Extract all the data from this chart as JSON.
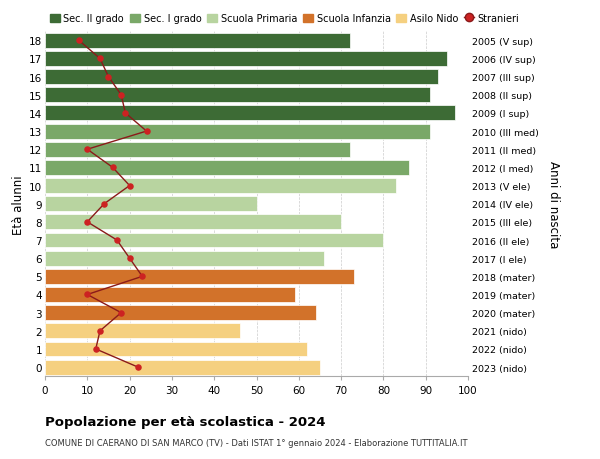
{
  "ages": [
    18,
    17,
    16,
    15,
    14,
    13,
    12,
    11,
    10,
    9,
    8,
    7,
    6,
    5,
    4,
    3,
    2,
    1,
    0
  ],
  "anni_nascita": [
    "2005 (V sup)",
    "2006 (IV sup)",
    "2007 (III sup)",
    "2008 (II sup)",
    "2009 (I sup)",
    "2010 (III med)",
    "2011 (II med)",
    "2012 (I med)",
    "2013 (V ele)",
    "2014 (IV ele)",
    "2015 (III ele)",
    "2016 (II ele)",
    "2017 (I ele)",
    "2018 (mater)",
    "2019 (mater)",
    "2020 (mater)",
    "2021 (nido)",
    "2022 (nido)",
    "2023 (nido)"
  ],
  "bar_values": [
    72,
    95,
    93,
    91,
    97,
    91,
    72,
    86,
    83,
    50,
    70,
    80,
    66,
    73,
    59,
    64,
    46,
    62,
    65
  ],
  "stranieri": [
    8,
    13,
    15,
    18,
    19,
    24,
    10,
    16,
    20,
    14,
    10,
    17,
    20,
    23,
    10,
    18,
    13,
    12,
    22
  ],
  "bar_colors": [
    "#3d6b35",
    "#3d6b35",
    "#3d6b35",
    "#3d6b35",
    "#3d6b35",
    "#7aa868",
    "#7aa868",
    "#7aa868",
    "#b8d4a0",
    "#b8d4a0",
    "#b8d4a0",
    "#b8d4a0",
    "#b8d4a0",
    "#d2722a",
    "#d2722a",
    "#d2722a",
    "#f5d080",
    "#f5d080",
    "#f5d080"
  ],
  "stranieri_line_color": "#8b1a1a",
  "stranieri_dot_color": "#cc2222",
  "legend_labels": [
    "Sec. II grado",
    "Sec. I grado",
    "Scuola Primaria",
    "Scuola Infanzia",
    "Asilo Nido",
    "Stranieri"
  ],
  "legend_colors": [
    "#3d6b35",
    "#7aa868",
    "#b8d4a0",
    "#d2722a",
    "#f5d080",
    "#cc2222"
  ],
  "title": "Popolazione per età scolastica - 2024",
  "subtitle": "COMUNE DI CAERANO DI SAN MARCO (TV) - Dati ISTAT 1° gennaio 2024 - Elaborazione TUTTITALIA.IT",
  "ylabel_left": "Età alunni",
  "ylabel_right": "Anni di nascita",
  "xlim": [
    0,
    100
  ],
  "xticks": [
    0,
    10,
    20,
    30,
    40,
    50,
    60,
    70,
    80,
    90,
    100
  ],
  "background_color": "#ffffff",
  "bar_height": 0.82
}
